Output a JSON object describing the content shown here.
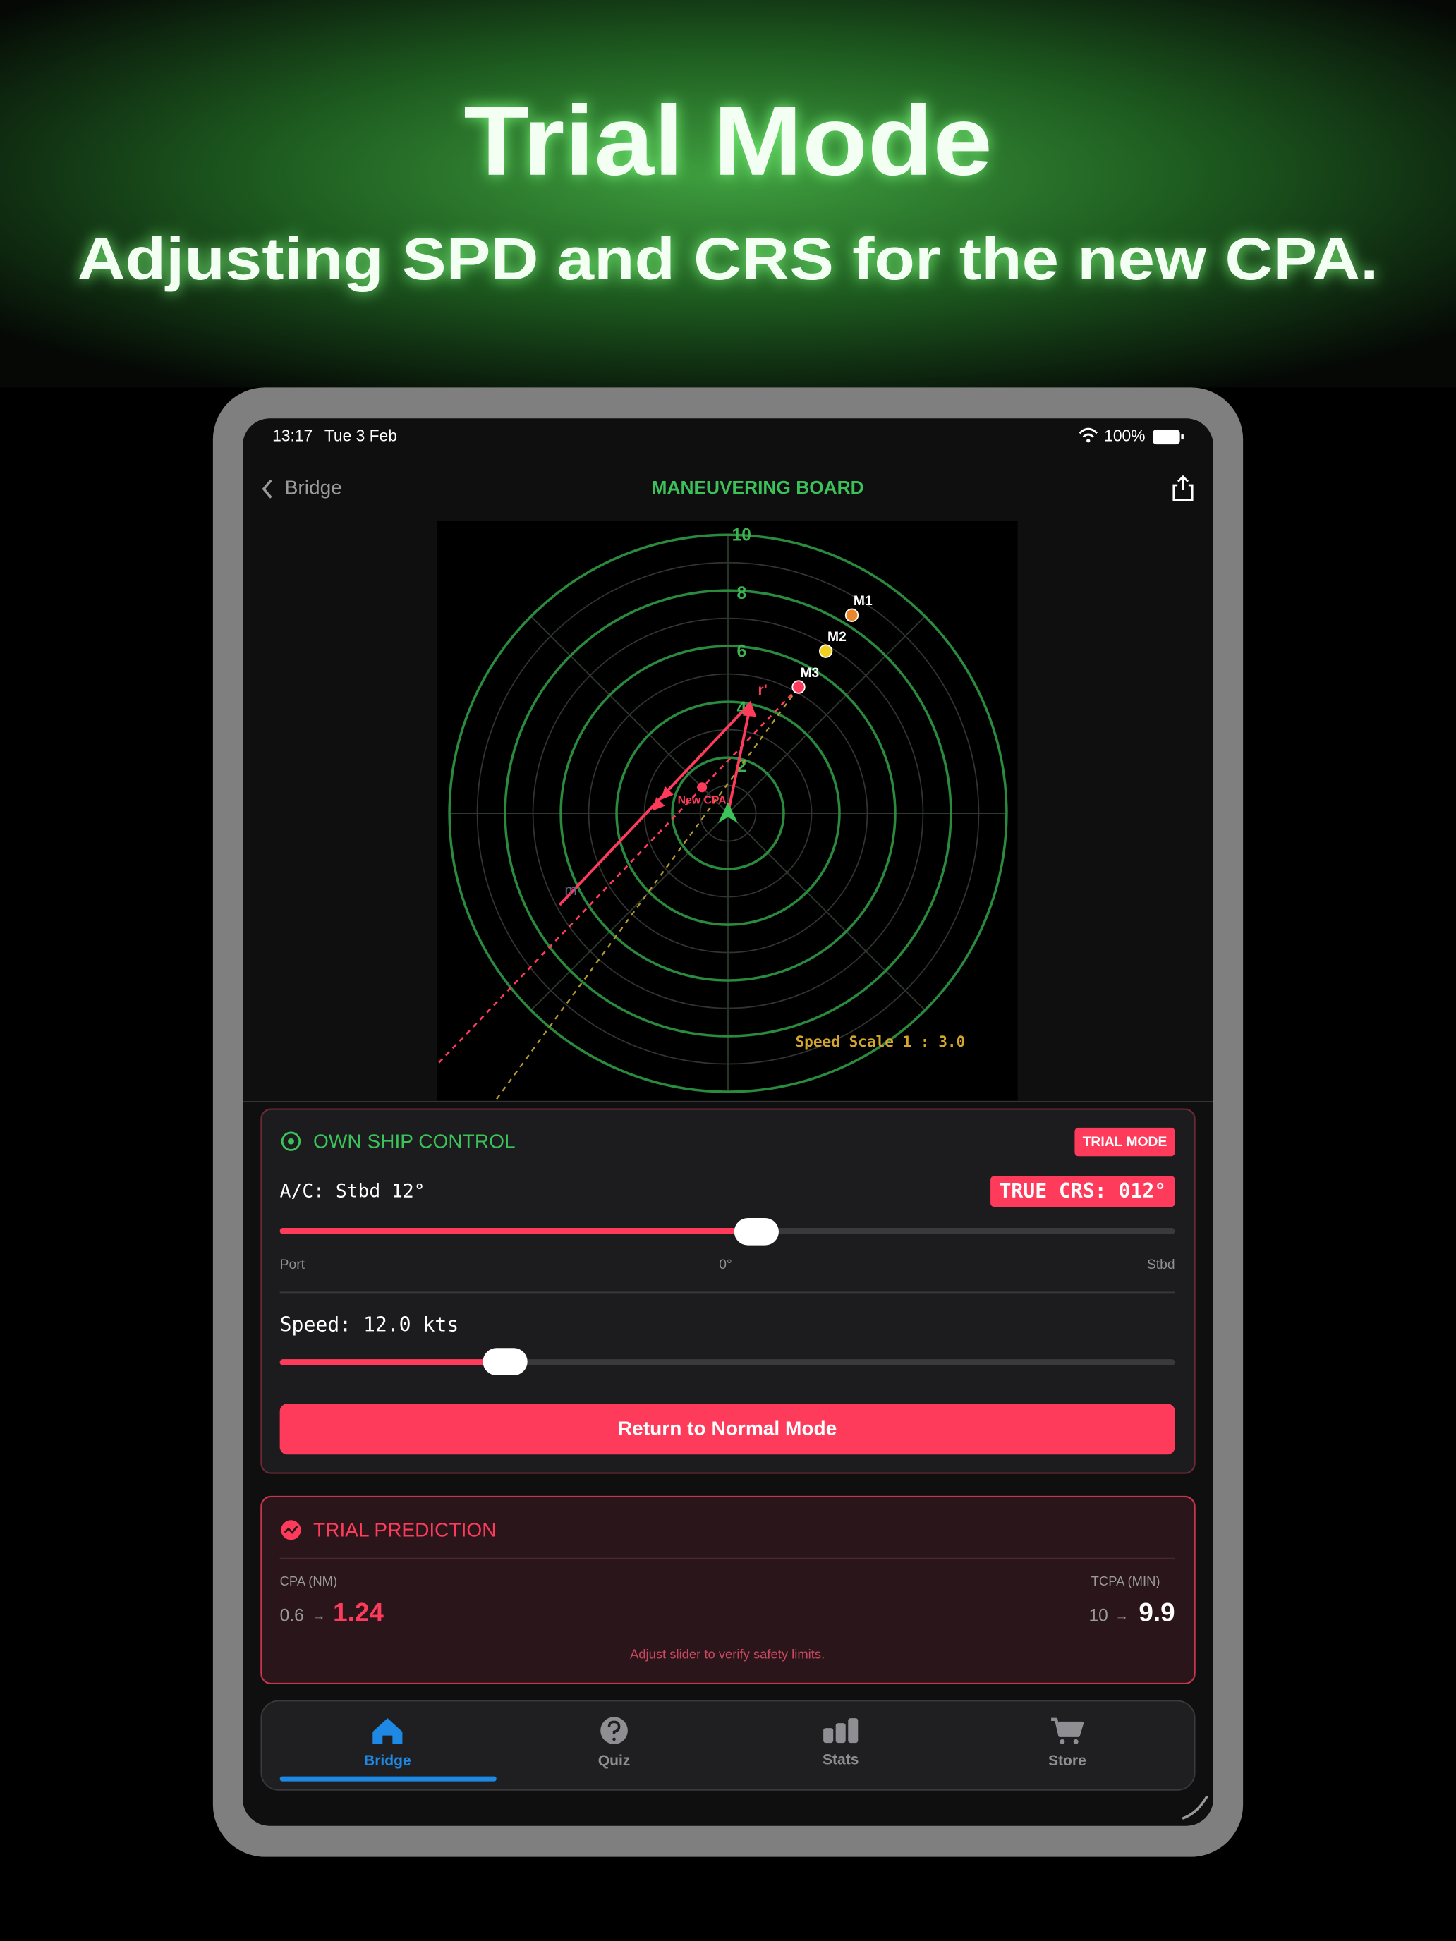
{
  "header": {
    "title": "Trial Mode",
    "subtitle": "Adjusting SPD and CRS for the new CPA."
  },
  "status_bar": {
    "time": "13:17",
    "date": "Tue 3 Feb",
    "battery": "100%"
  },
  "nav": {
    "back": "Bridge",
    "title": "MANEUVERING BOARD"
  },
  "board": {
    "ring_labels": [
      10,
      8,
      6,
      4,
      2
    ],
    "contacts": [
      "M1",
      "M2",
      "M3"
    ],
    "relative_label": "r'",
    "m_label": "m",
    "cpa_label": "New CPA",
    "speed_scale": "Speed Scale 1 : 3.0"
  },
  "own_ship_control": {
    "title": "OWN SHIP CONTROL",
    "badge": "TRIAL MODE",
    "rudder": "A/C: Stbd 12°",
    "true_course": "TRUE CRS: 012°",
    "rudder_scale": [
      "Port",
      "0°",
      "Stbd"
    ],
    "speed": "Speed: 12.0 kts",
    "button": "Return to Normal Mode"
  },
  "trial_prediction": {
    "title": "TRIAL PREDICTION",
    "cpa_label": "CPA (NM)",
    "cpa_old": "0.6",
    "arrow": "→",
    "cpa_new": "1.24",
    "tcpa_label": "TCPA (MIN)",
    "tcpa_old": "10",
    "tcpa_new": "9.9",
    "note": "Adjust slider to verify safety limits."
  },
  "tab_bar": {
    "tabs": [
      "Bridge",
      "Quiz",
      "Stats",
      "Store"
    ]
  }
}
